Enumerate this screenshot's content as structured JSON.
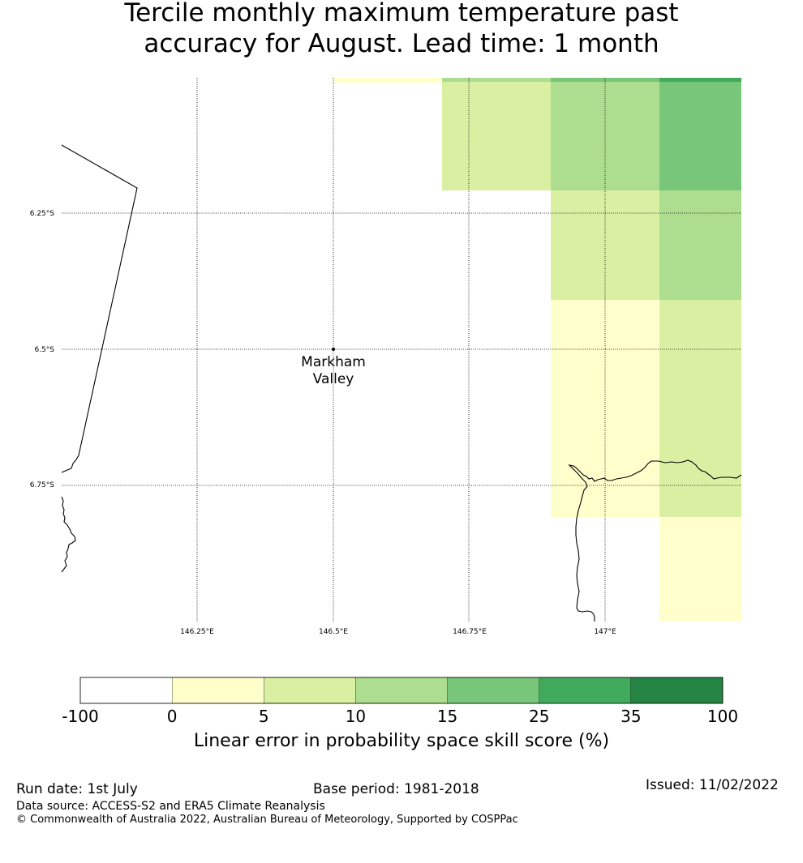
{
  "title": {
    "line1": "Tercile monthly maximum temperature past",
    "line2": "accuracy for August. Lead time: 1 month"
  },
  "map": {
    "lat_labels": [
      "6.25°S",
      "6.5°S",
      "6.75°S"
    ],
    "lon_labels": [
      "146.25°E",
      "146.5°E",
      "146.75°E",
      "147°E"
    ],
    "place": {
      "name_line1": "Markham",
      "name_line2": "Valley",
      "lon": 146.5,
      "lat": -6.5
    },
    "colors": {
      "band_0_5": "#ffffcc",
      "band_5_10": "#d9f0a3",
      "band_10_15": "#addd8e",
      "band_15_25": "#78c679",
      "band_25_35": "#41ab5d",
      "band_35_100": "#238443"
    }
  },
  "colorbar": {
    "ticks": [
      "-100",
      "0",
      "5",
      "10",
      "15",
      "25",
      "35",
      "100"
    ],
    "colors": [
      "#ffffff",
      "#ffffcc",
      "#d9f0a3",
      "#addd8e",
      "#78c679",
      "#41ab5d",
      "#238443"
    ],
    "label": "Linear error in probability space skill score (%)"
  },
  "footer": {
    "run_date": "Run date: 1st July",
    "base_period": "Base period: 1981-2018",
    "issued": "Issued: 11/02/2022",
    "data_source": "Data source: ACCESS-S2 and ERA5 Climate Reanalysis",
    "copyright": "© Commonwealth of Australia 2022, Australian Bureau of Meteorology, Supported by COSPPac"
  }
}
